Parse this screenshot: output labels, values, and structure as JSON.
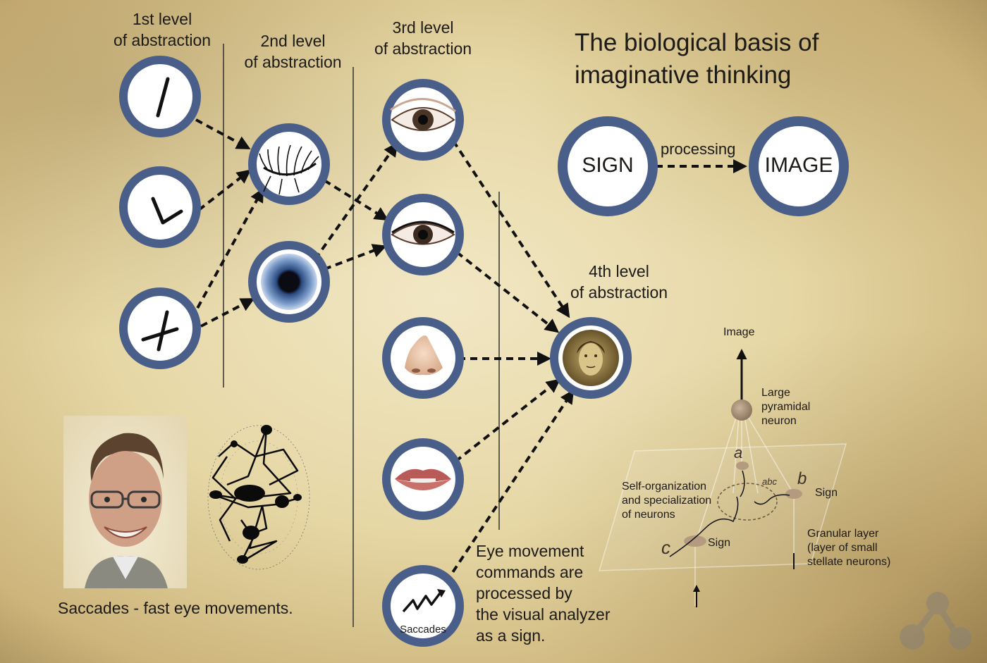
{
  "title": "The biological basis of imaginative thinking",
  "levels": {
    "level1": "1st level\nof abstraction",
    "level2": "2nd level\nof abstraction",
    "level3": "3rd level\nof abstraction",
    "level4": "4th level\nof abstraction"
  },
  "sign_image": {
    "sign": "SIGN",
    "image": "IMAGE",
    "arrow_label": "processing"
  },
  "saccades_node_label": "Saccades",
  "saccades_caption": "Saccades - fast eye movements.",
  "eye_movement_text": "Eye movement\ncommands are\nprocessed by\nthe visual analyzer\nas a sign.",
  "neuron_diagram": {
    "image_label": "Image",
    "pyramidal_label": "Large\npyramidal\nneuron",
    "self_org_label": "Self-organization\nand specialization\nof neurons",
    "sign_b": "Sign",
    "sign_c": "Sign",
    "granular_label": "Granular layer\n(layer of small\nstellate neurons)",
    "letter_a": "a",
    "letter_b": "b",
    "letter_c": "c",
    "letters_abc": "abc"
  },
  "colors": {
    "ring": "#4a5e8a",
    "ink": "#1c1a16"
  }
}
